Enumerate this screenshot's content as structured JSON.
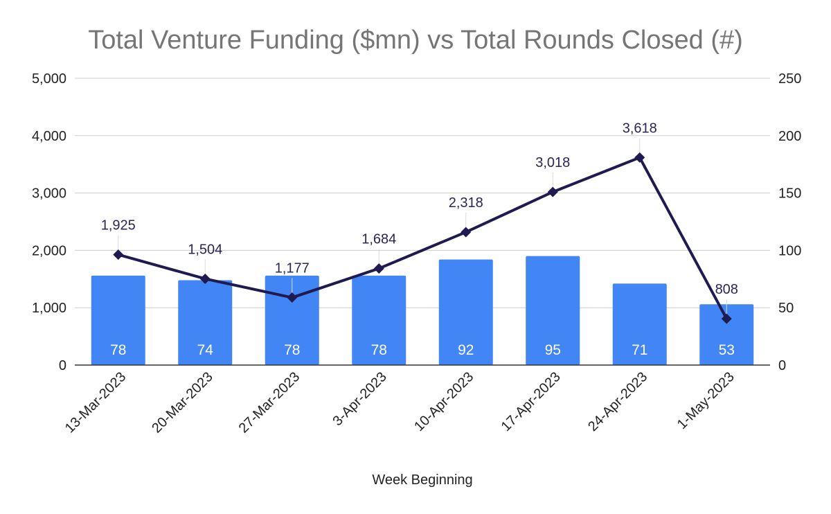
{
  "chart_data": {
    "type": "bar+line",
    "title": "Total Venture Funding ($mn) vs Total Rounds Closed (#)",
    "xlabel": "Week Beginning",
    "categories": [
      "13-Mar-2023",
      "20-Mar-2023",
      "27-Mar-2023",
      "3-Apr-2023",
      "10-Apr-2023",
      "17-Apr-2023",
      "24-Apr-2023",
      "1-May-2023"
    ],
    "y_left": {
      "ylim": [
        0,
        5000
      ],
      "ticks": [
        "0",
        "1,000",
        "2,000",
        "3,000",
        "4,000",
        "5,000"
      ]
    },
    "y_right": {
      "ylim": [
        0,
        250
      ],
      "ticks": [
        "0",
        "50",
        "100",
        "150",
        "200",
        "250"
      ]
    },
    "grid": true,
    "series": [
      {
        "name": "Total Rounds Closed (#)",
        "type": "bar",
        "axis": "right",
        "color": "#4285f4",
        "values": [
          78,
          74,
          78,
          78,
          92,
          95,
          71,
          53
        ],
        "labels": [
          "78",
          "74",
          "78",
          "78",
          "92",
          "95",
          "71",
          "53"
        ]
      },
      {
        "name": "Total Venture Funding ($mn)",
        "type": "line",
        "axis": "left",
        "color": "#1f1a4f",
        "marker": "diamond",
        "values": [
          1925,
          1504,
          1177,
          1684,
          2318,
          3018,
          3618,
          808
        ],
        "labels": [
          "1,925",
          "1,504",
          "1,177",
          "1,684",
          "2,318",
          "3,018",
          "3,618",
          "808"
        ]
      }
    ]
  }
}
